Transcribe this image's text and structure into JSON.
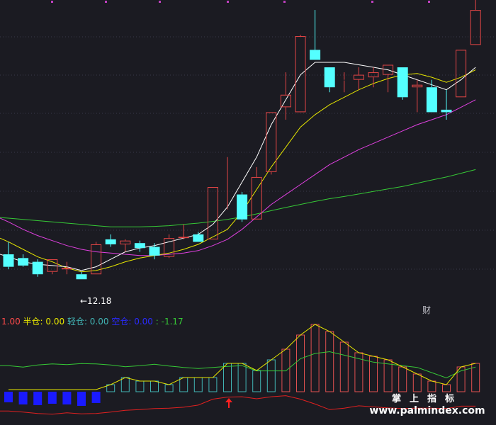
{
  "colors": {
    "background": "#1b1b22",
    "up": "#e64646",
    "down": "#54ffff",
    "ma_white": "#ffffff",
    "ma_yellow": "#e6e600",
    "ma_magenta": "#e040e0",
    "ma_green": "#36c836",
    "grid": "#3a3a4a",
    "bar_blue": "#1a1aff",
    "bar_cyan": "#41b4b4",
    "bar_red": "#e05050"
  },
  "legend": {
    "prefix": "1.00",
    "half": "半仓: 0.00",
    "light": "轻仓: 0.00",
    "empty": "空仓: 0.00",
    "tail": ": -1.17"
  },
  "annotation_low": "←12.18",
  "annotation_cai": "财",
  "watermark": {
    "cn": "掌上指标",
    "url": "www.palmindex.com"
  },
  "chart_data": {
    "type": "candlestick",
    "ylim": [
      10.8,
      23.3
    ],
    "grid": true,
    "low_marker": {
      "index": 5,
      "value": 12.18
    },
    "candles": [
      {
        "o": 13.1,
        "h": 13.6,
        "l": 12.5,
        "c": 12.6
      },
      {
        "o": 12.95,
        "h": 13.1,
        "l": 12.6,
        "c": 12.65
      },
      {
        "o": 12.8,
        "h": 12.9,
        "l": 12.2,
        "c": 12.3
      },
      {
        "o": 12.4,
        "h": 12.9,
        "l": 12.3,
        "c": 12.9
      },
      {
        "o": 12.5,
        "h": 12.8,
        "l": 12.3,
        "c": 12.55
      },
      {
        "o": 12.3,
        "h": 12.4,
        "l": 12.1,
        "c": 12.1
      },
      {
        "o": 12.3,
        "h": 13.6,
        "l": 12.3,
        "c": 13.5
      },
      {
        "o": 13.7,
        "h": 13.9,
        "l": 13.4,
        "c": 13.5
      },
      {
        "o": 13.5,
        "h": 13.7,
        "l": 13.2,
        "c": 13.65
      },
      {
        "o": 13.55,
        "h": 13.65,
        "l": 13.2,
        "c": 13.35
      },
      {
        "o": 13.4,
        "h": 13.55,
        "l": 12.9,
        "c": 13.05
      },
      {
        "o": 13.0,
        "h": 13.9,
        "l": 12.95,
        "c": 13.75
      },
      {
        "o": 13.75,
        "h": 14.3,
        "l": 13.7,
        "c": 13.8
      },
      {
        "o": 13.9,
        "h": 14.0,
        "l": 13.6,
        "c": 13.6
      },
      {
        "o": 13.7,
        "h": 15.8,
        "l": 13.7,
        "c": 15.8
      },
      {
        "o": 15.0,
        "h": 17.0,
        "l": 14.9,
        "c": 15.0
      },
      {
        "o": 15.5,
        "h": 15.6,
        "l": 14.4,
        "c": 14.5
      },
      {
        "o": 14.5,
        "h": 16.6,
        "l": 14.5,
        "c": 16.2
      },
      {
        "o": 16.4,
        "h": 18.8,
        "l": 16.3,
        "c": 18.8
      },
      {
        "o": 19.0,
        "h": 20.4,
        "l": 18.5,
        "c": 19.5
      },
      {
        "o": 18.8,
        "h": 21.9,
        "l": 18.8,
        "c": 21.85
      },
      {
        "o": 21.3,
        "h": 22.9,
        "l": 20.9,
        "c": 20.9
      },
      {
        "o": 20.6,
        "h": 20.6,
        "l": 19.6,
        "c": 19.8
      },
      {
        "o": 20.1,
        "h": 20.4,
        "l": 19.6,
        "c": 20.1
      },
      {
        "o": 20.1,
        "h": 20.6,
        "l": 19.7,
        "c": 20.3
      },
      {
        "o": 20.2,
        "h": 20.6,
        "l": 19.8,
        "c": 20.4
      },
      {
        "o": 20.3,
        "h": 20.7,
        "l": 19.6,
        "c": 20.7
      },
      {
        "o": 20.6,
        "h": 20.6,
        "l": 19.3,
        "c": 19.4
      },
      {
        "o": 19.8,
        "h": 20.1,
        "l": 18.8,
        "c": 19.9
      },
      {
        "o": 19.8,
        "h": 20.1,
        "l": 18.8,
        "c": 18.8
      },
      {
        "o": 18.9,
        "h": 19.7,
        "l": 18.5,
        "c": 18.8
      },
      {
        "o": 19.4,
        "h": 21.3,
        "l": 19.4,
        "c": 21.3
      },
      {
        "o": 21.5,
        "h": 23.3,
        "l": 21.5,
        "c": 22.9
      }
    ],
    "ma_white": [
      13.0,
      12.8,
      12.7,
      12.65,
      12.6,
      12.45,
      12.6,
      12.9,
      13.2,
      13.35,
      13.45,
      13.6,
      13.75,
      13.9,
      14.3,
      15.0,
      16.0,
      17.0,
      18.3,
      19.3,
      20.3,
      20.8,
      20.8,
      20.8,
      20.7,
      20.6,
      20.5,
      20.3,
      20.1,
      19.9,
      19.7,
      20.1,
      20.6
    ],
    "ma_yellow": [
      13.6,
      13.3,
      13.0,
      12.8,
      12.55,
      12.4,
      12.45,
      12.6,
      12.8,
      12.95,
      13.05,
      13.15,
      13.3,
      13.5,
      13.8,
      14.1,
      14.8,
      15.7,
      16.6,
      17.4,
      18.2,
      18.7,
      19.1,
      19.4,
      19.7,
      19.95,
      20.15,
      20.3,
      20.35,
      20.2,
      20.0,
      20.2,
      20.5
    ],
    "ma_magenta": [
      14.4,
      14.1,
      13.85,
      13.65,
      13.45,
      13.3,
      13.2,
      13.15,
      13.1,
      13.05,
      13.05,
      13.1,
      13.15,
      13.25,
      13.45,
      13.7,
      14.1,
      14.6,
      15.1,
      15.5,
      15.9,
      16.3,
      16.7,
      17.0,
      17.3,
      17.55,
      17.8,
      18.05,
      18.3,
      18.5,
      18.7,
      19.0,
      19.3
    ],
    "ma_green": [
      14.55,
      14.5,
      14.45,
      14.4,
      14.35,
      14.3,
      14.25,
      14.2,
      14.2,
      14.2,
      14.22,
      14.25,
      14.3,
      14.35,
      14.42,
      14.5,
      14.6,
      14.72,
      14.85,
      14.98,
      15.1,
      15.22,
      15.33,
      15.42,
      15.52,
      15.62,
      15.72,
      15.82,
      15.95,
      16.08,
      16.2,
      16.35,
      16.5
    ],
    "indicator": {
      "ylim": [
        -12.0,
        16.0
      ],
      "bars": [
        {
          "v": -1.5,
          "color": "blue"
        },
        {
          "v": -1.8,
          "color": "blue"
        },
        {
          "v": -1.9,
          "color": "blue"
        },
        {
          "v": -1.7,
          "color": "blue"
        },
        {
          "v": -1.8,
          "color": "blue"
        },
        {
          "v": -2.0,
          "color": "blue"
        },
        {
          "v": -1.6,
          "color": "blue"
        },
        {
          "v": 1.0,
          "color": "cyan"
        },
        {
          "v": 2.0,
          "color": "cyan"
        },
        {
          "v": 1.5,
          "color": "cyan"
        },
        {
          "v": 1.5,
          "color": "cyan"
        },
        {
          "v": 1.0,
          "color": "cyan"
        },
        {
          "v": 2.0,
          "color": "cyan"
        },
        {
          "v": 2.0,
          "color": "cyan"
        },
        {
          "v": 2.0,
          "color": "cyan"
        },
        {
          "v": 4.0,
          "color": "cyan"
        },
        {
          "v": 4.0,
          "color": "cyan"
        },
        {
          "v": 3.0,
          "color": "cyan"
        },
        {
          "v": 4.5,
          "color": "cyan"
        },
        {
          "v": 6.0,
          "color": "red"
        },
        {
          "v": 8.0,
          "color": "red"
        },
        {
          "v": 9.5,
          "color": "red"
        },
        {
          "v": 8.5,
          "color": "red"
        },
        {
          "v": 7.0,
          "color": "red"
        },
        {
          "v": 5.5,
          "color": "red"
        },
        {
          "v": 5.0,
          "color": "red"
        },
        {
          "v": 4.5,
          "color": "red"
        },
        {
          "v": 3.5,
          "color": "red"
        },
        {
          "v": 2.5,
          "color": "red"
        },
        {
          "v": 1.5,
          "color": "red"
        },
        {
          "v": 1.0,
          "color": "red"
        },
        {
          "v": 3.5,
          "color": "red"
        },
        {
          "v": 4.0,
          "color": "red"
        }
      ],
      "upper_line": [
        5.0,
        4.6,
        5.2,
        5.5,
        5.3,
        5.6,
        5.5,
        5.2,
        4.7,
        5.0,
        5.4,
        4.9,
        4.5,
        4.2,
        4.5,
        4.8,
        5.0,
        3.5,
        3.5,
        3.5,
        7.0,
        8.5,
        9.0,
        8.0,
        7.0,
        6.0,
        5.5,
        5.0,
        4.5,
        3.0,
        1.5,
        3.5,
        4.6
      ],
      "lower_line": [
        -8.0,
        -8.3,
        -8.7,
        -8.9,
        -8.5,
        -8.8,
        -8.7,
        -8.3,
        -7.8,
        -7.6,
        -7.3,
        -7.2,
        -6.9,
        -6.3,
        -4.6,
        -4.0,
        -3.9,
        -4.5,
        -3.9,
        -3.6,
        -4.6,
        -6.0,
        -7.6,
        -7.2,
        -6.5,
        -6.8,
        -7.1,
        -7.3,
        -7.2,
        -7.2,
        -7.3,
        -6.6,
        -6.6
      ],
      "arrow_index": 15
    }
  }
}
